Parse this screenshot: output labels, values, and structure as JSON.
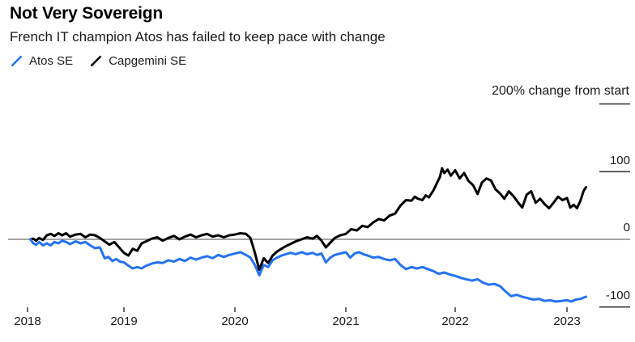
{
  "header": {
    "title": "Not Very Sovereign",
    "subtitle": "French IT champion Atos has failed to keep pace with change"
  },
  "legend": {
    "items": [
      {
        "label": "Atos SE",
        "color": "#2472f2",
        "icon": "slash-icon"
      },
      {
        "label": "Capgemini SE",
        "color": "#000000",
        "icon": "slash-icon"
      }
    ]
  },
  "colors": {
    "background": "#ffffff",
    "accent_blue": "#2472f2",
    "series_black": "#000000",
    "zero_line": "#6e6e6e",
    "tick_mark": "#3c3c3c",
    "text": "#1a1a1a"
  },
  "chart_data": {
    "type": "line",
    "title": "Not Very Sovereign",
    "subtitle": "French IT champion Atos has failed to keep pace with change",
    "unit_label": "200% change from start",
    "ylabel": "% change from start",
    "xlabel": "",
    "x_ticks": [
      "2018",
      "2019",
      "2020",
      "2021",
      "2022",
      "2023"
    ],
    "y_ticks": [
      {
        "value": 200,
        "label": "200% change from start"
      },
      {
        "value": 100,
        "label": "100"
      },
      {
        "value": 0,
        "label": "0"
      },
      {
        "value": -100,
        "label": "-100"
      }
    ],
    "xlim": [
      2018.0,
      2023.2
    ],
    "ylim": [
      -120,
      210
    ],
    "grid": "zero baseline only; short right-edge tick dashes; y axis labels on right",
    "legend_position": "top-left under subtitle",
    "series": [
      {
        "name": "Capgemini SE",
        "color": "#000000",
        "points": [
          [
            2018.03,
            0
          ],
          [
            2018.06,
            1
          ],
          [
            2018.09,
            -2
          ],
          [
            2018.12,
            2
          ],
          [
            2018.16,
            -1
          ],
          [
            2018.2,
            6
          ],
          [
            2018.24,
            8
          ],
          [
            2018.28,
            5
          ],
          [
            2018.32,
            9
          ],
          [
            2018.36,
            6
          ],
          [
            2018.4,
            9
          ],
          [
            2018.44,
            4
          ],
          [
            2018.5,
            7
          ],
          [
            2018.55,
            8
          ],
          [
            2018.6,
            3
          ],
          [
            2018.65,
            7
          ],
          [
            2018.7,
            6
          ],
          [
            2018.75,
            2
          ],
          [
            2018.8,
            -3
          ],
          [
            2018.85,
            -8
          ],
          [
            2018.9,
            -4
          ],
          [
            2018.95,
            -12
          ],
          [
            2019.0,
            -20
          ],
          [
            2019.04,
            -24
          ],
          [
            2019.08,
            -14
          ],
          [
            2019.12,
            -17
          ],
          [
            2019.16,
            -6
          ],
          [
            2019.2,
            -3
          ],
          [
            2019.25,
            1
          ],
          [
            2019.3,
            3
          ],
          [
            2019.35,
            -2
          ],
          [
            2019.4,
            2
          ],
          [
            2019.45,
            5
          ],
          [
            2019.5,
            0
          ],
          [
            2019.55,
            4
          ],
          [
            2019.6,
            7
          ],
          [
            2019.65,
            3
          ],
          [
            2019.7,
            6
          ],
          [
            2019.75,
            8
          ],
          [
            2019.8,
            4
          ],
          [
            2019.85,
            6
          ],
          [
            2019.9,
            3
          ],
          [
            2019.95,
            6
          ],
          [
            2020.0,
            7
          ],
          [
            2020.05,
            9
          ],
          [
            2020.1,
            8
          ],
          [
            2020.14,
            2
          ],
          [
            2020.18,
            -20
          ],
          [
            2020.22,
            -45
          ],
          [
            2020.26,
            -28
          ],
          [
            2020.3,
            -35
          ],
          [
            2020.34,
            -24
          ],
          [
            2020.38,
            -18
          ],
          [
            2020.42,
            -14
          ],
          [
            2020.46,
            -10
          ],
          [
            2020.5,
            -7
          ],
          [
            2020.55,
            -3
          ],
          [
            2020.6,
            0
          ],
          [
            2020.65,
            3
          ],
          [
            2020.7,
            1
          ],
          [
            2020.74,
            5
          ],
          [
            2020.78,
            -2
          ],
          [
            2020.82,
            -12
          ],
          [
            2020.86,
            -5
          ],
          [
            2020.9,
            2
          ],
          [
            2020.95,
            6
          ],
          [
            2021.0,
            8
          ],
          [
            2021.05,
            15
          ],
          [
            2021.1,
            13
          ],
          [
            2021.15,
            20
          ],
          [
            2021.2,
            18
          ],
          [
            2021.25,
            25
          ],
          [
            2021.3,
            30
          ],
          [
            2021.35,
            28
          ],
          [
            2021.4,
            35
          ],
          [
            2021.45,
            38
          ],
          [
            2021.5,
            50
          ],
          [
            2021.55,
            58
          ],
          [
            2021.6,
            57
          ],
          [
            2021.63,
            63
          ],
          [
            2021.66,
            60
          ],
          [
            2021.7,
            58
          ],
          [
            2021.73,
            65
          ],
          [
            2021.76,
            62
          ],
          [
            2021.8,
            72
          ],
          [
            2021.83,
            82
          ],
          [
            2021.86,
            92
          ],
          [
            2021.88,
            105
          ],
          [
            2021.9,
            98
          ],
          [
            2021.93,
            103
          ],
          [
            2021.96,
            94
          ],
          [
            2022.0,
            102
          ],
          [
            2022.04,
            90
          ],
          [
            2022.08,
            98
          ],
          [
            2022.12,
            86
          ],
          [
            2022.16,
            80
          ],
          [
            2022.2,
            67
          ],
          [
            2022.24,
            84
          ],
          [
            2022.28,
            90
          ],
          [
            2022.32,
            87
          ],
          [
            2022.36,
            74
          ],
          [
            2022.4,
            68
          ],
          [
            2022.44,
            60
          ],
          [
            2022.48,
            71
          ],
          [
            2022.52,
            64
          ],
          [
            2022.56,
            55
          ],
          [
            2022.6,
            47
          ],
          [
            2022.64,
            66
          ],
          [
            2022.68,
            71
          ],
          [
            2022.72,
            54
          ],
          [
            2022.76,
            60
          ],
          [
            2022.8,
            52
          ],
          [
            2022.84,
            46
          ],
          [
            2022.88,
            54
          ],
          [
            2022.92,
            63
          ],
          [
            2022.96,
            58
          ],
          [
            2023.0,
            61
          ],
          [
            2023.03,
            47
          ],
          [
            2023.06,
            51
          ],
          [
            2023.09,
            46
          ],
          [
            2023.12,
            57
          ],
          [
            2023.15,
            72
          ],
          [
            2023.17,
            77
          ]
        ]
      },
      {
        "name": "Atos SE",
        "color": "#2472f2",
        "points": [
          [
            2018.03,
            0
          ],
          [
            2018.06,
            -6
          ],
          [
            2018.09,
            -8
          ],
          [
            2018.12,
            -4
          ],
          [
            2018.16,
            -9
          ],
          [
            2018.2,
            -6
          ],
          [
            2018.24,
            -9
          ],
          [
            2018.28,
            -4
          ],
          [
            2018.32,
            -6
          ],
          [
            2018.36,
            -2
          ],
          [
            2018.4,
            -4
          ],
          [
            2018.44,
            -7
          ],
          [
            2018.5,
            -3
          ],
          [
            2018.55,
            -6
          ],
          [
            2018.6,
            -4
          ],
          [
            2018.65,
            -9
          ],
          [
            2018.7,
            -13
          ],
          [
            2018.75,
            -12
          ],
          [
            2018.8,
            -28
          ],
          [
            2018.84,
            -26
          ],
          [
            2018.88,
            -32
          ],
          [
            2018.92,
            -29
          ],
          [
            2018.96,
            -33
          ],
          [
            2019.0,
            -34
          ],
          [
            2019.04,
            -39
          ],
          [
            2019.08,
            -43
          ],
          [
            2019.12,
            -41
          ],
          [
            2019.16,
            -43
          ],
          [
            2019.2,
            -39
          ],
          [
            2019.25,
            -36
          ],
          [
            2019.3,
            -34
          ],
          [
            2019.35,
            -35
          ],
          [
            2019.4,
            -31
          ],
          [
            2019.45,
            -33
          ],
          [
            2019.5,
            -29
          ],
          [
            2019.55,
            -32
          ],
          [
            2019.6,
            -27
          ],
          [
            2019.65,
            -30
          ],
          [
            2019.7,
            -27
          ],
          [
            2019.75,
            -25
          ],
          [
            2019.8,
            -28
          ],
          [
            2019.85,
            -23
          ],
          [
            2019.9,
            -26
          ],
          [
            2019.95,
            -23
          ],
          [
            2020.0,
            -21
          ],
          [
            2020.05,
            -19
          ],
          [
            2020.1,
            -23
          ],
          [
            2020.14,
            -27
          ],
          [
            2020.18,
            -38
          ],
          [
            2020.22,
            -53
          ],
          [
            2020.26,
            -38
          ],
          [
            2020.3,
            -41
          ],
          [
            2020.34,
            -31
          ],
          [
            2020.38,
            -27
          ],
          [
            2020.42,
            -24
          ],
          [
            2020.46,
            -22
          ],
          [
            2020.5,
            -20
          ],
          [
            2020.55,
            -22
          ],
          [
            2020.6,
            -19
          ],
          [
            2020.65,
            -22
          ],
          [
            2020.7,
            -20
          ],
          [
            2020.74,
            -23
          ],
          [
            2020.78,
            -21
          ],
          [
            2020.82,
            -34
          ],
          [
            2020.86,
            -27
          ],
          [
            2020.9,
            -23
          ],
          [
            2020.95,
            -21
          ],
          [
            2021.0,
            -19
          ],
          [
            2021.04,
            -27
          ],
          [
            2021.08,
            -21
          ],
          [
            2021.12,
            -19
          ],
          [
            2021.16,
            -22
          ],
          [
            2021.2,
            -24
          ],
          [
            2021.25,
            -27
          ],
          [
            2021.3,
            -26
          ],
          [
            2021.35,
            -29
          ],
          [
            2021.4,
            -31
          ],
          [
            2021.45,
            -29
          ],
          [
            2021.5,
            -38
          ],
          [
            2021.55,
            -44
          ],
          [
            2021.6,
            -41
          ],
          [
            2021.65,
            -43
          ],
          [
            2021.7,
            -41
          ],
          [
            2021.75,
            -44
          ],
          [
            2021.8,
            -47
          ],
          [
            2021.85,
            -51
          ],
          [
            2021.9,
            -49
          ],
          [
            2021.95,
            -52
          ],
          [
            2022.0,
            -54
          ],
          [
            2022.05,
            -57
          ],
          [
            2022.1,
            -59
          ],
          [
            2022.15,
            -61
          ],
          [
            2022.2,
            -59
          ],
          [
            2022.25,
            -64
          ],
          [
            2022.3,
            -67
          ],
          [
            2022.35,
            -66
          ],
          [
            2022.4,
            -69
          ],
          [
            2022.45,
            -77
          ],
          [
            2022.5,
            -84
          ],
          [
            2022.55,
            -82
          ],
          [
            2022.6,
            -85
          ],
          [
            2022.65,
            -87
          ],
          [
            2022.7,
            -89
          ],
          [
            2022.75,
            -88
          ],
          [
            2022.8,
            -91
          ],
          [
            2022.85,
            -90
          ],
          [
            2022.9,
            -92
          ],
          [
            2022.95,
            -91
          ],
          [
            2023.0,
            -90
          ],
          [
            2023.04,
            -92
          ],
          [
            2023.08,
            -89
          ],
          [
            2023.12,
            -88
          ],
          [
            2023.15,
            -86
          ],
          [
            2023.17,
            -85
          ]
        ]
      }
    ]
  }
}
